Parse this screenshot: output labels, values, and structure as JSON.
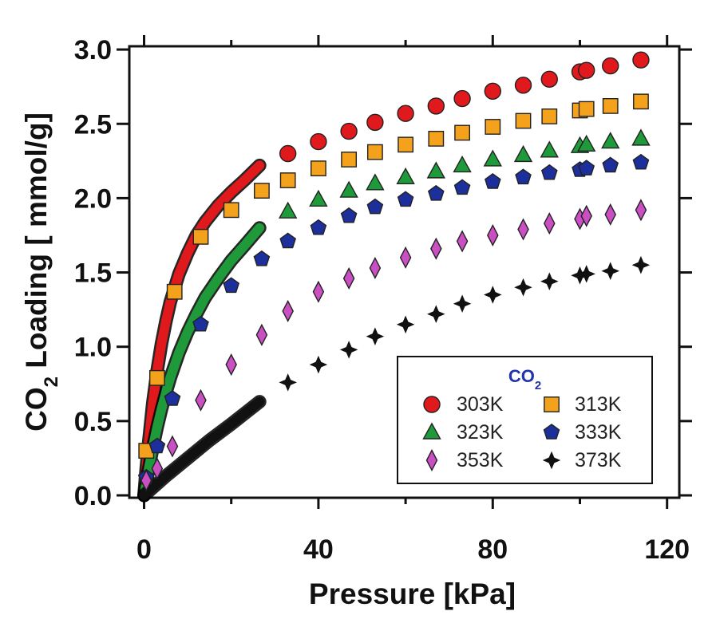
{
  "chart_data": {
    "type": "scatter",
    "xlabel": "Pressure [kPa]",
    "ylabel_parts": [
      "CO",
      "2",
      " Loading [ mmol/g]"
    ],
    "xlim": [
      0,
      120
    ],
    "ylim": [
      0,
      3.0
    ],
    "xticks": [
      0,
      40,
      80,
      120
    ],
    "xtick_labels": [
      "0",
      "40",
      "80",
      "120"
    ],
    "xminor": [
      20,
      60,
      100
    ],
    "yticks": [
      0,
      0.5,
      1.0,
      1.5,
      2.0,
      2.5,
      3.0
    ],
    "ytick_labels": [
      "0.0",
      "0.5",
      "1.0",
      "1.5",
      "2.0",
      "2.5",
      "3.0"
    ],
    "grid": false,
    "legend": {
      "position": "bottom-right",
      "title_parts": [
        "CO",
        "2"
      ]
    },
    "series": [
      {
        "name": "303K",
        "marker": "circle",
        "color": "#e0191c",
        "points": [
          [
            33,
            2.3
          ],
          [
            40,
            2.38
          ],
          [
            47,
            2.45
          ],
          [
            53,
            2.51
          ],
          [
            60,
            2.57
          ],
          [
            67,
            2.62
          ],
          [
            73,
            2.67
          ],
          [
            80,
            2.72
          ],
          [
            87,
            2.76
          ],
          [
            93,
            2.8
          ],
          [
            100,
            2.85
          ],
          [
            101.5,
            2.86
          ],
          [
            107,
            2.89
          ],
          [
            114,
            2.93
          ]
        ],
        "curve": [
          [
            0,
            0
          ],
          [
            0.5,
            0.18
          ],
          [
            1,
            0.34
          ],
          [
            2,
            0.62
          ],
          [
            3,
            0.84
          ],
          [
            4,
            1.02
          ],
          [
            5,
            1.17
          ],
          [
            6,
            1.3
          ],
          [
            8,
            1.49
          ],
          [
            10,
            1.63
          ],
          [
            12,
            1.75
          ],
          [
            14,
            1.84
          ],
          [
            17,
            1.95
          ],
          [
            20,
            2.04
          ],
          [
            23,
            2.12
          ],
          [
            26.5,
            2.22
          ]
        ]
      },
      {
        "name": "313K",
        "marker": "square",
        "color": "#f4a21c",
        "points": [
          [
            0.5,
            0.3
          ],
          [
            3,
            0.79
          ],
          [
            7,
            1.37
          ],
          [
            13,
            1.74
          ],
          [
            20,
            1.92
          ],
          [
            27,
            2.05
          ],
          [
            33,
            2.12
          ],
          [
            40,
            2.2
          ],
          [
            47,
            2.26
          ],
          [
            53,
            2.31
          ],
          [
            60,
            2.36
          ],
          [
            67,
            2.4
          ],
          [
            73,
            2.44
          ],
          [
            80,
            2.48
          ],
          [
            87,
            2.52
          ],
          [
            93,
            2.55
          ],
          [
            100,
            2.59
          ],
          [
            101.5,
            2.6
          ],
          [
            107,
            2.62
          ],
          [
            114,
            2.65
          ]
        ]
      },
      {
        "name": "323K",
        "marker": "triangle",
        "color": "#1f9a3a",
        "points": [
          [
            33,
            1.91
          ],
          [
            40,
            1.99
          ],
          [
            47,
            2.05
          ],
          [
            53,
            2.1
          ],
          [
            60,
            2.14
          ],
          [
            67,
            2.18
          ],
          [
            73,
            2.22
          ],
          [
            80,
            2.26
          ],
          [
            87,
            2.29
          ],
          [
            93,
            2.32
          ],
          [
            100,
            2.35
          ],
          [
            101.5,
            2.36
          ],
          [
            107,
            2.38
          ],
          [
            114,
            2.4
          ]
        ],
        "curve": [
          [
            0,
            0
          ],
          [
            1,
            0.17
          ],
          [
            2,
            0.32
          ],
          [
            3,
            0.46
          ],
          [
            4,
            0.58
          ],
          [
            5,
            0.69
          ],
          [
            6,
            0.79
          ],
          [
            8,
            0.96
          ],
          [
            10,
            1.1
          ],
          [
            12,
            1.22
          ],
          [
            14,
            1.33
          ],
          [
            17,
            1.46
          ],
          [
            20,
            1.58
          ],
          [
            23,
            1.68
          ],
          [
            26.5,
            1.8
          ]
        ]
      },
      {
        "name": "333K",
        "marker": "pentagon",
        "color": "#1c2f9a",
        "points": [
          [
            0.5,
            0.12
          ],
          [
            3,
            0.33
          ],
          [
            6.5,
            0.65
          ],
          [
            13,
            1.15
          ],
          [
            20,
            1.41
          ],
          [
            27,
            1.59
          ],
          [
            33,
            1.71
          ],
          [
            40,
            1.8
          ],
          [
            47,
            1.88
          ],
          [
            53,
            1.94
          ],
          [
            60,
            1.99
          ],
          [
            67,
            2.03
          ],
          [
            73,
            2.07
          ],
          [
            80,
            2.11
          ],
          [
            87,
            2.14
          ],
          [
            93,
            2.17
          ],
          [
            100,
            2.19
          ],
          [
            101.5,
            2.2
          ],
          [
            107,
            2.22
          ],
          [
            114,
            2.24
          ]
        ]
      },
      {
        "name": "353K",
        "marker": "diamond",
        "color": "#c94fc2",
        "points": [
          [
            0.5,
            0.1
          ],
          [
            3,
            0.18
          ],
          [
            6.5,
            0.33
          ],
          [
            13,
            0.64
          ],
          [
            20,
            0.88
          ],
          [
            27,
            1.08
          ],
          [
            33,
            1.24
          ],
          [
            40,
            1.37
          ],
          [
            47,
            1.46
          ],
          [
            53,
            1.53
          ],
          [
            60,
            1.6
          ],
          [
            67,
            1.66
          ],
          [
            73,
            1.71
          ],
          [
            80,
            1.75
          ],
          [
            87,
            1.79
          ],
          [
            93,
            1.83
          ],
          [
            100,
            1.86
          ],
          [
            101.5,
            1.88
          ],
          [
            107,
            1.89
          ],
          [
            114,
            1.92
          ]
        ]
      },
      {
        "name": "373K",
        "marker": "star",
        "color": "#111111",
        "points": [
          [
            33,
            0.76
          ],
          [
            40,
            0.88
          ],
          [
            47,
            0.98
          ],
          [
            53,
            1.07
          ],
          [
            60,
            1.15
          ],
          [
            67,
            1.22
          ],
          [
            73,
            1.29
          ],
          [
            80,
            1.35
          ],
          [
            87,
            1.4
          ],
          [
            93,
            1.44
          ],
          [
            100,
            1.48
          ],
          [
            101.5,
            1.49
          ],
          [
            107,
            1.51
          ],
          [
            114,
            1.55
          ]
        ],
        "curve": [
          [
            0,
            0
          ],
          [
            5,
            0.13
          ],
          [
            10,
            0.25
          ],
          [
            15,
            0.37
          ],
          [
            20,
            0.48
          ],
          [
            26.5,
            0.63
          ]
        ]
      }
    ]
  }
}
